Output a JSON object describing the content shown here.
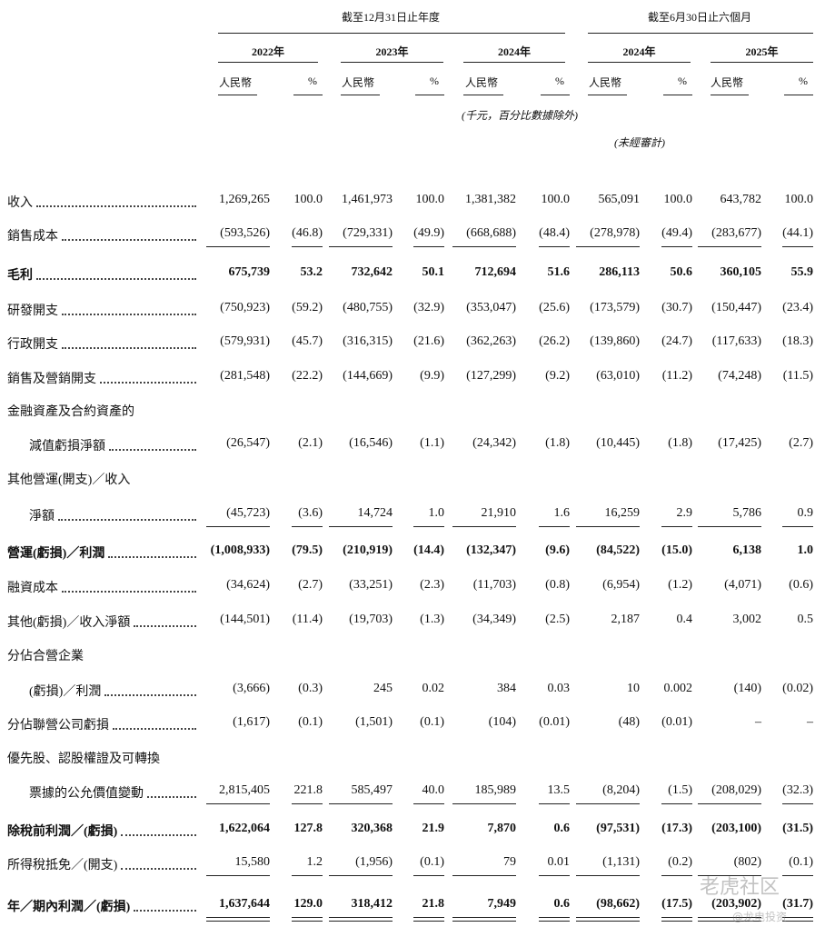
{
  "header": {
    "groups": [
      "截至12月31日止年度",
      "截至6月30日止六個月"
    ],
    "years": [
      "2022年",
      "2023年",
      "2024年",
      "2024年",
      "2025年"
    ],
    "units": [
      "人民幣",
      "%",
      "人民幣",
      "%",
      "人民幣",
      "%",
      "人民幣",
      "%",
      "人民幣",
      "%"
    ],
    "notes": [
      "(千元，百分比數據除外)",
      "(未經審計)"
    ]
  },
  "table": {
    "rows": [
      {
        "label": "收入",
        "values": [
          "1,269,265",
          "100.0",
          "1,461,973",
          "100.0",
          "1,381,382",
          "100.0",
          "565,091",
          "100.0",
          "643,782",
          "100.0"
        ]
      },
      {
        "label": "銷售成本",
        "values": [
          "(593,526)",
          "(46.8)",
          "(729,331)",
          "(49.9)",
          "(668,688)",
          "(48.4)",
          "(278,978)",
          "(49.4)",
          "(283,677)",
          "(44.1)"
        ],
        "underline": "single"
      },
      {
        "label": "毛利",
        "values": [
          "675,739",
          "53.2",
          "732,642",
          "50.1",
          "712,694",
          "51.6",
          "286,113",
          "50.6",
          "360,105",
          "55.9"
        ],
        "bold": true
      },
      {
        "label": "研發開支",
        "values": [
          "(750,923)",
          "(59.2)",
          "(480,755)",
          "(32.9)",
          "(353,047)",
          "(25.6)",
          "(173,579)",
          "(30.7)",
          "(150,447)",
          "(23.4)"
        ]
      },
      {
        "label": "行政開支",
        "values": [
          "(579,931)",
          "(45.7)",
          "(316,315)",
          "(21.6)",
          "(362,263)",
          "(26.2)",
          "(139,860)",
          "(24.7)",
          "(117,633)",
          "(18.3)"
        ]
      },
      {
        "label": "銷售及營銷開支",
        "values": [
          "(281,548)",
          "(22.2)",
          "(144,669)",
          "(9.9)",
          "(127,299)",
          "(9.2)",
          "(63,010)",
          "(11.2)",
          "(74,248)",
          "(11.5)"
        ]
      },
      {
        "label": "金融資產及合約資產的"
      },
      {
        "label": "減值虧損淨額",
        "values": [
          "(26,547)",
          "(2.1)",
          "(16,546)",
          "(1.1)",
          "(24,342)",
          "(1.8)",
          "(10,445)",
          "(1.8)",
          "(17,425)",
          "(2.7)"
        ]
      },
      {
        "label": "其他營運(開支)／收入"
      },
      {
        "label": "淨額",
        "values": [
          "(45,723)",
          "(3.6)",
          "14,724",
          "1.0",
          "21,910",
          "1.6",
          "16,259",
          "2.9",
          "5,786",
          "0.9"
        ],
        "underline": "single"
      },
      {
        "label": "營運(虧損)／利潤",
        "values": [
          "(1,008,933)",
          "(79.5)",
          "(210,919)",
          "(14.4)",
          "(132,347)",
          "(9.6)",
          "(84,522)",
          "(15.0)",
          "6,138",
          "1.0"
        ],
        "bold": true
      },
      {
        "label": "融資成本",
        "values": [
          "(34,624)",
          "(2.7)",
          "(33,251)",
          "(2.3)",
          "(11,703)",
          "(0.8)",
          "(6,954)",
          "(1.2)",
          "(4,071)",
          "(0.6)"
        ]
      },
      {
        "label": "其他(虧損)／收入淨額",
        "values": [
          "(144,501)",
          "(11.4)",
          "(19,703)",
          "(1.3)",
          "(34,349)",
          "(2.5)",
          "2,187",
          "0.4",
          "3,002",
          "0.5"
        ]
      },
      {
        "label": "分佔合營企業"
      },
      {
        "label": "(虧損)／利潤",
        "values": [
          "(3,666)",
          "(0.3)",
          "245",
          "0.02",
          "384",
          "0.03",
          "10",
          "0.002",
          "(140)",
          "(0.02)"
        ]
      },
      {
        "label": "分佔聯營公司虧損",
        "values": [
          "(1,617)",
          "(0.1)",
          "(1,501)",
          "(0.1)",
          "(104)",
          "(0.01)",
          "(48)",
          "(0.01)",
          "–",
          "–"
        ]
      },
      {
        "label": "優先股、認股權證及可轉換"
      },
      {
        "label": "票據的公允價值變動",
        "values": [
          "2,815,405",
          "221.8",
          "585,497",
          "40.0",
          "185,989",
          "13.5",
          "(8,204)",
          "(1.5)",
          "(208,029)",
          "(32.3)"
        ],
        "underline": "single"
      },
      {
        "label": "除稅前利潤／(虧損)",
        "values": [
          "1,622,064",
          "127.8",
          "320,368",
          "21.9",
          "7,870",
          "0.6",
          "(97,531)",
          "(17.3)",
          "(203,100)",
          "(31.5)"
        ],
        "bold": true
      },
      {
        "label": "所得稅抵免／(開支)",
        "values": [
          "15,580",
          "1.2",
          "(1,956)",
          "(0.1)",
          "79",
          "0.01",
          "(1,131)",
          "(0.2)",
          "(802)",
          "(0.1)"
        ],
        "underline": "single"
      },
      {
        "label": "年／期內利潤／(虧損)",
        "values": [
          "1,637,644",
          "129.0",
          "318,412",
          "21.8",
          "7,949",
          "0.6",
          "(98,662)",
          "(17.5)",
          "(203,902)",
          "(31.7)"
        ],
        "bold": true,
        "underline": "double"
      }
    ]
  },
  "watermark": [
    "老虎社区",
    "@龙电投资"
  ]
}
